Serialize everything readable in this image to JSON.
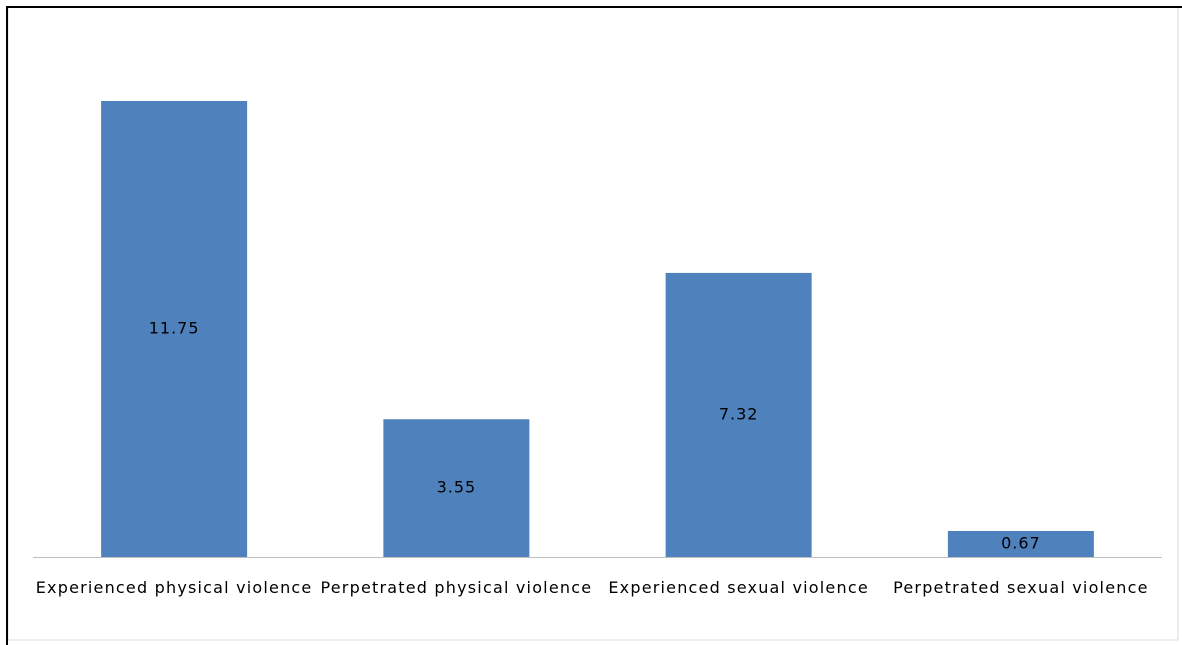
{
  "chart_data": {
    "type": "bar",
    "categories": [
      "Experienced physical violence",
      "Perpetrated physical violence",
      "Experienced sexual violence",
      "Perpetrated sexual violence"
    ],
    "values": [
      11.75,
      3.55,
      7.32,
      0.67
    ],
    "color": "#4f81bd"
  }
}
